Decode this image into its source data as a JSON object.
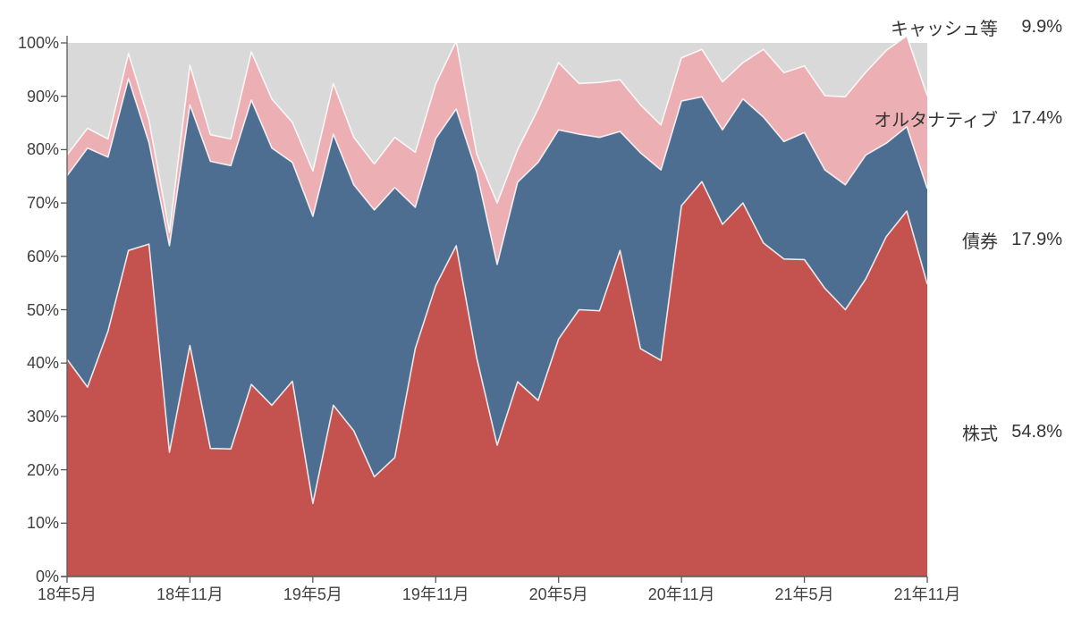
{
  "chart_data": {
    "type": "area",
    "stacked": true,
    "title": "",
    "xlabel": "",
    "ylabel": "",
    "ylim": [
      0,
      100
    ],
    "y_tick_labels": [
      "0%",
      "10%",
      "20%",
      "30%",
      "40%",
      "50%",
      "60%",
      "70%",
      "80%",
      "90%",
      "100%"
    ],
    "x_tick_labels": [
      "18年5月",
      "18年11月",
      "19年5月",
      "19年11月",
      "20年5月",
      "20年11月",
      "21年5月",
      "21年11月"
    ],
    "x_tick_every": 6,
    "grid": "off",
    "legend_position": "right",
    "categories": [
      "18年5月",
      "18年6月",
      "18年7月",
      "18年8月",
      "18年9月",
      "18年10月",
      "18年11月",
      "18年12月",
      "19年1月",
      "19年2月",
      "19年3月",
      "19年4月",
      "19年5月",
      "19年6月",
      "19年7月",
      "19年8月",
      "19年9月",
      "19年10月",
      "19年11月",
      "19年12月",
      "20年1月",
      "20年2月",
      "20年3月",
      "20年4月",
      "20年5月",
      "20年6月",
      "20年7月",
      "20年8月",
      "20年9月",
      "20年10月",
      "20年11月",
      "20年12月",
      "21年1月",
      "21年2月",
      "21年3月",
      "21年4月",
      "21年5月",
      "21年6月",
      "21年7月",
      "21年8月",
      "21年9月",
      "21年10月",
      "21年11月"
    ],
    "series": [
      {
        "name": "株式",
        "legend_value": "54.8%",
        "color": "#c4534f",
        "values": [
          40.7,
          35.5,
          46,
          61.1,
          62.3,
          23.3,
          43.3,
          24,
          23.9,
          36,
          32.1,
          36.6,
          13.7,
          32.1,
          27.3,
          18.7,
          22.3,
          42.7,
          54.5,
          62,
          41,
          24.6,
          36.5,
          33,
          44.5,
          50,
          49.8,
          61.1,
          42.7,
          40.5,
          69.5,
          74,
          66,
          70,
          62.5,
          59.5,
          59.4,
          54,
          50,
          55.8,
          63.7,
          68.5,
          54.8
        ]
      },
      {
        "name": "債券",
        "legend_value": "17.9%",
        "color": "#4d6e90",
        "values": [
          34.4,
          44.8,
          32.6,
          32.2,
          19,
          38.7,
          45.1,
          53.8,
          53.1,
          53.3,
          48.2,
          41,
          53.8,
          50.8,
          46.1,
          50,
          50.6,
          26.5,
          27.6,
          25.6,
          34.8,
          33.9,
          37.4,
          44.6,
          39.2,
          32.9,
          32.5,
          22.3,
          36.7,
          35.7,
          19.6,
          15.9,
          17.7,
          19.5,
          23.6,
          22,
          23.8,
          22.2,
          23.4,
          23.2,
          17.5,
          15.8,
          17.9
        ]
      },
      {
        "name": "オルタナティブ",
        "legend_value": "17.4%",
        "color": "#ecafb4",
        "values": [
          3.9,
          3.7,
          3.4,
          4.7,
          4.2,
          2.5,
          7.4,
          5,
          5,
          9,
          9.2,
          7.5,
          8.5,
          9.5,
          8.9,
          8.6,
          9.4,
          10.3,
          10.2,
          12.7,
          3.4,
          11.5,
          6.1,
          10,
          12.6,
          9.5,
          10.3,
          9.7,
          9,
          8.4,
          8.1,
          8.9,
          9,
          6.8,
          12.7,
          12.9,
          12.5,
          13.9,
          16.5,
          15.5,
          17.4,
          17,
          17.4
        ]
      },
      {
        "name": "キャッシュ等",
        "legend_value": "9.9%",
        "color": "#d9d9d9",
        "values": [
          21,
          16,
          18,
          2,
          14.5,
          35.5,
          4.2,
          17.2,
          18,
          1.7,
          10.5,
          14.9,
          24,
          7.6,
          17.7,
          22.7,
          17.7,
          20.5,
          7.7,
          -0.3,
          20.8,
          30,
          20,
          12.4,
          3.7,
          7.6,
          7.4,
          6.9,
          11.6,
          15.4,
          2.8,
          1.2,
          7.3,
          3.7,
          1.2,
          5.6,
          4.3,
          9.9,
          10.1,
          5.5,
          1.4,
          -1.3,
          9.9
        ]
      }
    ],
    "colors": {
      "axis_line": "#595959",
      "tick_text": "#404040",
      "legend_text": "#333333",
      "boundary_stroke": "rgba(255,255,255,0.85)"
    }
  }
}
